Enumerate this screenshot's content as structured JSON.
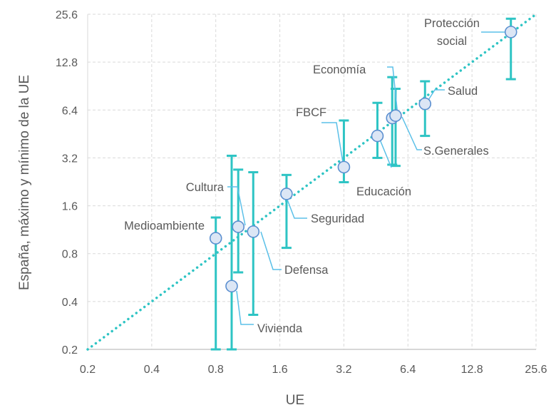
{
  "chart_data": {
    "type": "scatter",
    "xlabel": "UE",
    "ylabel": "España, máximo y mínimo de la UE",
    "x_scale": "log2",
    "y_scale": "log2",
    "xlim": [
      0.2,
      25.6
    ],
    "ylim": [
      0.2,
      25.6
    ],
    "x_ticks": [
      "0.2",
      "0.4",
      "0.8",
      "1.6",
      "3.2",
      "6.4",
      "12.8",
      "25.6"
    ],
    "y_ticks": [
      "0.2",
      "0.4",
      "0.8",
      "1.6",
      "3.2",
      "6.4",
      "12.8",
      "25.6"
    ],
    "grid": true,
    "reference_line": "y = x",
    "colors": {
      "error_bar": "#2ec4c4",
      "marker_fill": "#dce6f5",
      "marker_stroke": "#5b8fd0",
      "leader_line": "#5bc0e8",
      "diagonal": "#2ec4c4"
    },
    "points": [
      {
        "label": "Medioambiente",
        "x": 0.8,
        "y": 1.0,
        "min": 0.2,
        "max": 1.35
      },
      {
        "label": "Vivienda",
        "x": 0.95,
        "y": 0.5,
        "min": 0.2,
        "max": 3.3
      },
      {
        "label": "Cultura",
        "x": 1.02,
        "y": 1.18,
        "min": 0.61,
        "max": 2.7
      },
      {
        "label": "Defensa",
        "x": 1.2,
        "y": 1.1,
        "min": 0.33,
        "max": 2.6
      },
      {
        "label": "Seguridad",
        "x": 1.72,
        "y": 1.9,
        "min": 0.87,
        "max": 2.5
      },
      {
        "label": "FBCF",
        "x": 3.2,
        "y": 2.8,
        "min": 2.25,
        "max": 5.5
      },
      {
        "label": "Educación",
        "x": 4.6,
        "y": 4.4,
        "min": 3.2,
        "max": 7.1
      },
      {
        "label": "Economía",
        "x": 5.4,
        "y": 5.7,
        "min": 2.9,
        "max": 10.3
      },
      {
        "label": "S.Generales",
        "x": 5.6,
        "y": 5.9,
        "min": 2.85,
        "max": 8.7
      },
      {
        "label": "Salud",
        "x": 7.7,
        "y": 7.0,
        "min": 4.4,
        "max": 9.7
      },
      {
        "label": "Protección social",
        "label_lines": [
          "Protección",
          "social"
        ],
        "x": 19.5,
        "y": 19.8,
        "min": 10.0,
        "max": 24.0
      }
    ]
  }
}
